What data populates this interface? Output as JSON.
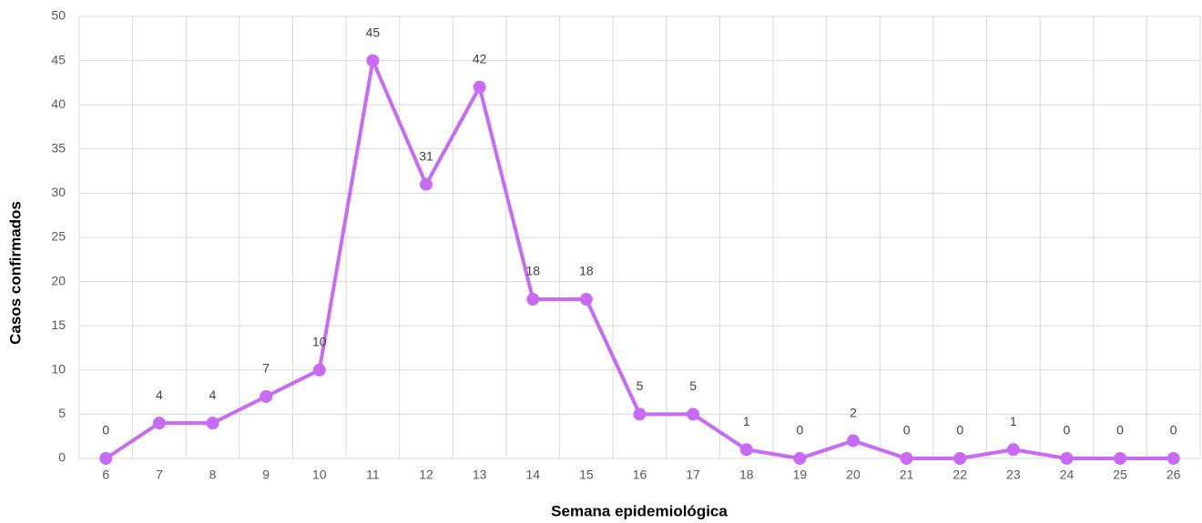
{
  "chart_data": {
    "type": "line",
    "x_label": "Semana epidemiológica",
    "y_label": "Casos confirmados",
    "categories": [
      "6",
      "7",
      "8",
      "9",
      "10",
      "11",
      "12",
      "13",
      "14",
      "15",
      "16",
      "17",
      "18",
      "19",
      "20",
      "21",
      "22",
      "23",
      "24",
      "25",
      "26"
    ],
    "series": [
      {
        "name": "Casos confirmados",
        "color": "#c86af5",
        "values": [
          0,
          4,
          4,
          7,
          10,
          45,
          31,
          42,
          18,
          18,
          5,
          5,
          1,
          0,
          2,
          0,
          0,
          1,
          0,
          0,
          0
        ]
      }
    ],
    "ylim": [
      0,
      50
    ],
    "yticks": [
      0,
      5,
      10,
      15,
      20,
      25,
      30,
      35,
      40,
      45,
      50
    ],
    "grid": true
  }
}
